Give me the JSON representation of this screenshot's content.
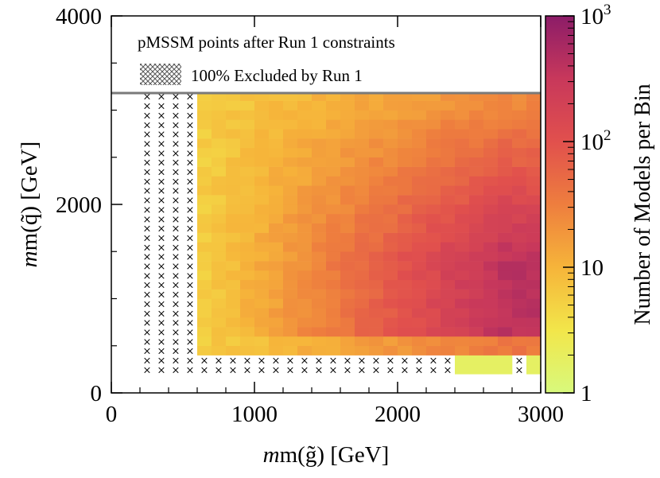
{
  "chart_data": {
    "type": "heatmap",
    "legend": {
      "title": "pMSSM points after Run 1 constraints",
      "entries": [
        {
          "label": "100% Excluded by Run 1",
          "pattern": "crosshatch"
        }
      ],
      "placement": "top"
    },
    "x": {
      "label_prefix": "m(",
      "label_symbol": "g̃",
      "label_suffix": ") [GeV]",
      "range": [
        0,
        3000
      ],
      "ticks": [
        0,
        1000,
        2000,
        3000
      ],
      "tick_labels": [
        "0",
        "1000",
        "2000",
        "3000"
      ]
    },
    "y": {
      "label_prefix": "m(",
      "label_symbol": "q̃",
      "label_suffix": ") [GeV]",
      "range": [
        0,
        4000
      ],
      "ticks": [
        0,
        2000,
        4000
      ],
      "tick_labels": [
        "0",
        "2000",
        "4000"
      ]
    },
    "colorbar": {
      "title": "Number of Models per Bin",
      "scale": "log",
      "range": [
        1,
        1000
      ],
      "ticks": [
        {
          "value": 1,
          "label": "1"
        },
        {
          "value": 10,
          "label": "10"
        },
        {
          "value": 100,
          "base": "10",
          "exponent": "2"
        },
        {
          "value": 1000,
          "base": "10",
          "exponent": "3"
        }
      ],
      "colors": [
        "#d8f97c",
        "#f2e64a",
        "#f6b43a",
        "#ee7e3e",
        "#e1504d",
        "#c8385b",
        "#8c1c68"
      ]
    },
    "bins": {
      "x_width": 100,
      "y_height": 100,
      "x_min": 200,
      "y_min": 200,
      "y_max": 3200
    },
    "excluded_region": "m(g̃) ≲ 600 GeV, m(q̃) ≲ 400 GeV",
    "trend": "bin counts increase with both m(g̃) and m(q̃); maximum (~600-800 models) near m(g̃)≈2500-3000 GeV, m(q̃)≈700-1200 GeV"
  }
}
